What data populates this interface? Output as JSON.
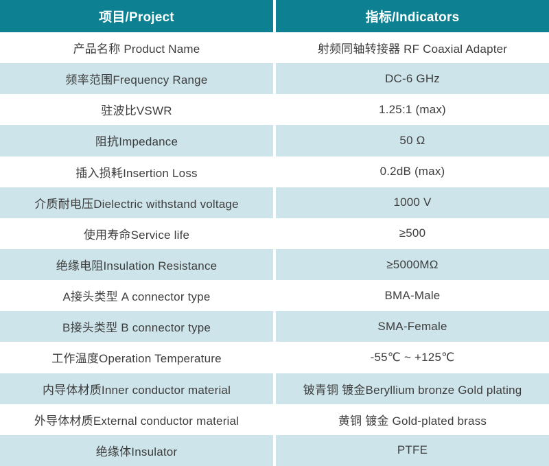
{
  "colors": {
    "header_bg": "#0d8191",
    "header_text": "#ffffff",
    "row_bg": "#ffffff",
    "row_alt_bg": "#cde4ea",
    "text": "#3d3d3d",
    "divider": "#ffffff"
  },
  "table": {
    "columns": [
      {
        "label": "项目/Project"
      },
      {
        "label": "指标/Indicators"
      }
    ],
    "rows": [
      {
        "label": "产品名称 Product Name",
        "value": "射频同轴转接器 RF Coaxial Adapter"
      },
      {
        "label": "频率范围Frequency Range",
        "value": "DC-6 GHz"
      },
      {
        "label": "驻波比VSWR",
        "value": "1.25:1 (max)"
      },
      {
        "label": "阻抗Impedance",
        "value": "50 Ω"
      },
      {
        "label": "插入损耗Insertion Loss",
        "value": "0.2dB (max)"
      },
      {
        "label": "介质耐电压Dielectric withstand voltage",
        "value": "1000 V"
      },
      {
        "label": "使用寿命Service life",
        "value": "≥500"
      },
      {
        "label": "绝缘电阻Insulation Resistance",
        "value": "≥5000MΩ"
      },
      {
        "label": "A接头类型 A connector type",
        "value": "BMA-Male"
      },
      {
        "label": "B接头类型 B connector type",
        "value": "SMA-Female"
      },
      {
        "label": "工作温度Operation Temperature",
        "value": "-55℃ ~ +125℃"
      },
      {
        "label": "内导体材质Inner conductor material",
        "value": "铍青铜 镀金Beryllium bronze Gold plating"
      },
      {
        "label": "外导体材质External conductor material",
        "value": "黄铜 镀金 Gold-plated brass"
      },
      {
        "label": "绝缘体Insulator",
        "value": "PTFE"
      }
    ]
  }
}
